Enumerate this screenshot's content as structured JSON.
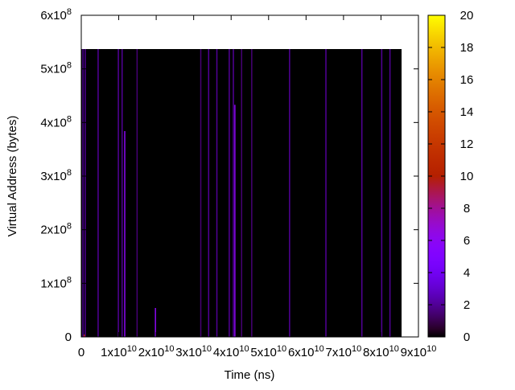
{
  "chart_data": {
    "type": "heatmap",
    "xlabel": "Time (ns)",
    "ylabel": "Virtual Address (bytes)",
    "xlim": [
      0,
      90000000000
    ],
    "ylim": [
      0,
      600000000
    ],
    "zlim": [
      0,
      20
    ],
    "xticks": [
      0,
      {
        "value": 10000000000,
        "label": "1x10^10"
      },
      {
        "value": 20000000000,
        "label": "2x10^10"
      },
      {
        "value": 30000000000,
        "label": "3x10^10"
      },
      {
        "value": 40000000000,
        "label": "4x10^10"
      },
      {
        "value": 50000000000,
        "label": "5x10^10"
      },
      {
        "value": 60000000000,
        "label": "6x10^10"
      },
      {
        "value": 70000000000,
        "label": "7x10^10"
      },
      {
        "value": 80000000000,
        "label": "8x10^10"
      },
      {
        "value": 90000000000,
        "label": "9x10^10"
      }
    ],
    "yticks": [
      0,
      {
        "value": 100000000,
        "label": "1x10^8"
      },
      {
        "value": 200000000,
        "label": "2x10^8"
      },
      {
        "value": 300000000,
        "label": "3x10^8"
      },
      {
        "value": 400000000,
        "label": "4x10^8"
      },
      {
        "value": 500000000,
        "label": "5x10^8"
      },
      {
        "value": 600000000,
        "label": "6x10^8"
      }
    ],
    "zticks": [
      0,
      2,
      4,
      6,
      8,
      10,
      12,
      14,
      16,
      18,
      20
    ],
    "fill": {
      "x": [
        0,
        85500000000
      ],
      "y": [
        0,
        537000000
      ],
      "value": 0
    },
    "streaks": [
      {
        "x": 450000000,
        "y": [
          0,
          537000000
        ],
        "value": 2
      },
      {
        "x": 1050000000,
        "y": [
          0,
          537000000
        ],
        "value": 2
      },
      {
        "x": 4500000000,
        "y": [
          0,
          537000000
        ],
        "value": 2
      },
      {
        "x": 9900000000,
        "y": [
          0,
          537000000
        ],
        "value": 2
      },
      {
        "x": 10900000000,
        "y": [
          0,
          537000000
        ],
        "value": 2
      },
      {
        "x": 14900000000,
        "y": [
          0,
          537000000
        ],
        "value": 1.5
      },
      {
        "x": 31900000000,
        "y": [
          0,
          537000000
        ],
        "value": 1.5
      },
      {
        "x": 34000000000,
        "y": [
          0,
          537000000
        ],
        "value": 2
      },
      {
        "x": 36200000000,
        "y": [
          0,
          537000000
        ],
        "value": 2
      },
      {
        "x": 39500000000,
        "y": [
          0,
          537000000
        ],
        "value": 2
      },
      {
        "x": 40600000000,
        "y": [
          0,
          537000000
        ],
        "value": 2
      },
      {
        "x": 42800000000,
        "y": [
          0,
          537000000
        ],
        "value": 1.5
      },
      {
        "x": 45500000000,
        "y": [
          0,
          537000000
        ],
        "value": 1.5
      },
      {
        "x": 55600000000,
        "y": [
          0,
          537000000
        ],
        "value": 2
      },
      {
        "x": 65300000000,
        "y": [
          0,
          537000000
        ],
        "value": 2
      },
      {
        "x": 74900000000,
        "y": [
          0,
          537000000
        ],
        "value": 2
      },
      {
        "x": 80200000000,
        "y": [
          0,
          537000000
        ],
        "value": 2
      },
      {
        "x": 82400000000,
        "y": [
          0,
          537000000
        ],
        "value": 2
      },
      {
        "x": 11600000000,
        "y": [
          0,
          384000000
        ],
        "value": 6
      },
      {
        "x": 41000000000,
        "y": [
          0,
          433000000
        ],
        "value": 6
      },
      {
        "x": 19800000000,
        "y": [
          0,
          54000000
        ],
        "value": 6
      },
      {
        "x": 800000000,
        "y": [
          0,
          4500000
        ],
        "value": 10
      }
    ]
  }
}
